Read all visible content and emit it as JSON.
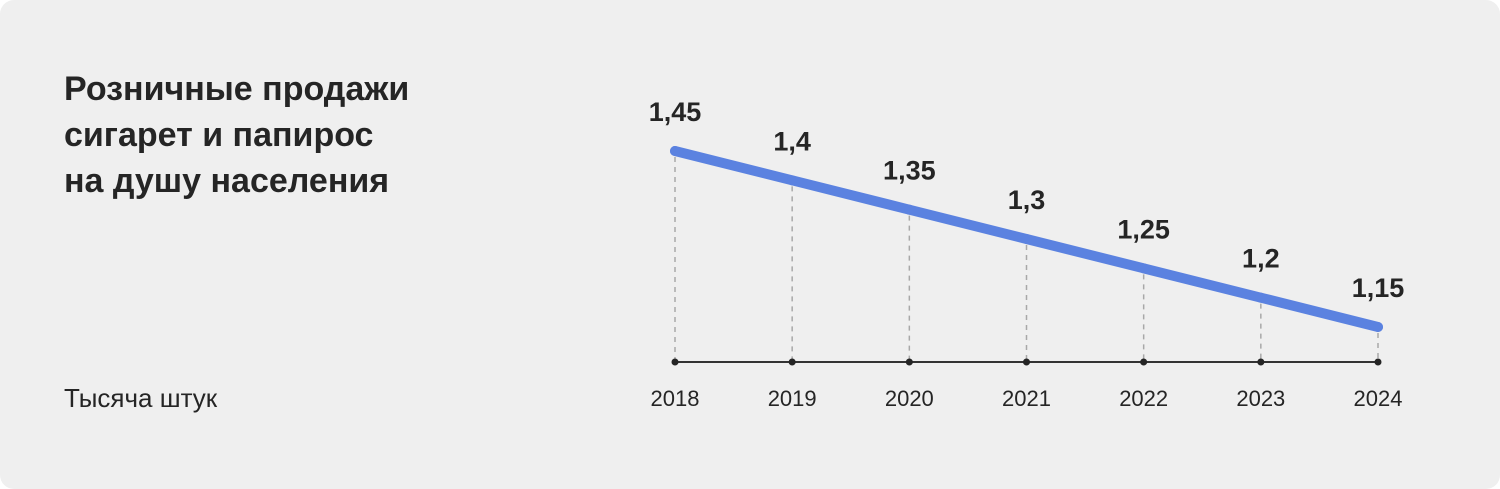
{
  "title_lines": [
    "Розничные продажи",
    "сигарет и папирос",
    "на душу населения"
  ],
  "unit_label": "Тысяча штук",
  "colors": {
    "background": "#efefef",
    "line": "#5b82e0",
    "text": "#252525",
    "guide": "#a8a8a8"
  },
  "chart_data": {
    "type": "line",
    "title": "Розничные продажи сигарет и папирос на душу населения",
    "ylabel": "Тысяча штук",
    "xlabel": "",
    "x": [
      "2018",
      "2019",
      "2020",
      "2021",
      "2022",
      "2023",
      "2024"
    ],
    "series": [
      {
        "values": [
          1.45,
          1.4,
          1.35,
          1.3,
          1.25,
          1.2,
          1.15
        ]
      }
    ],
    "data_labels": [
      "1,45",
      "1,4",
      "1,35",
      "1,3",
      "1,25",
      "1,2",
      "1,15"
    ],
    "grid": false,
    "legend": "none"
  }
}
